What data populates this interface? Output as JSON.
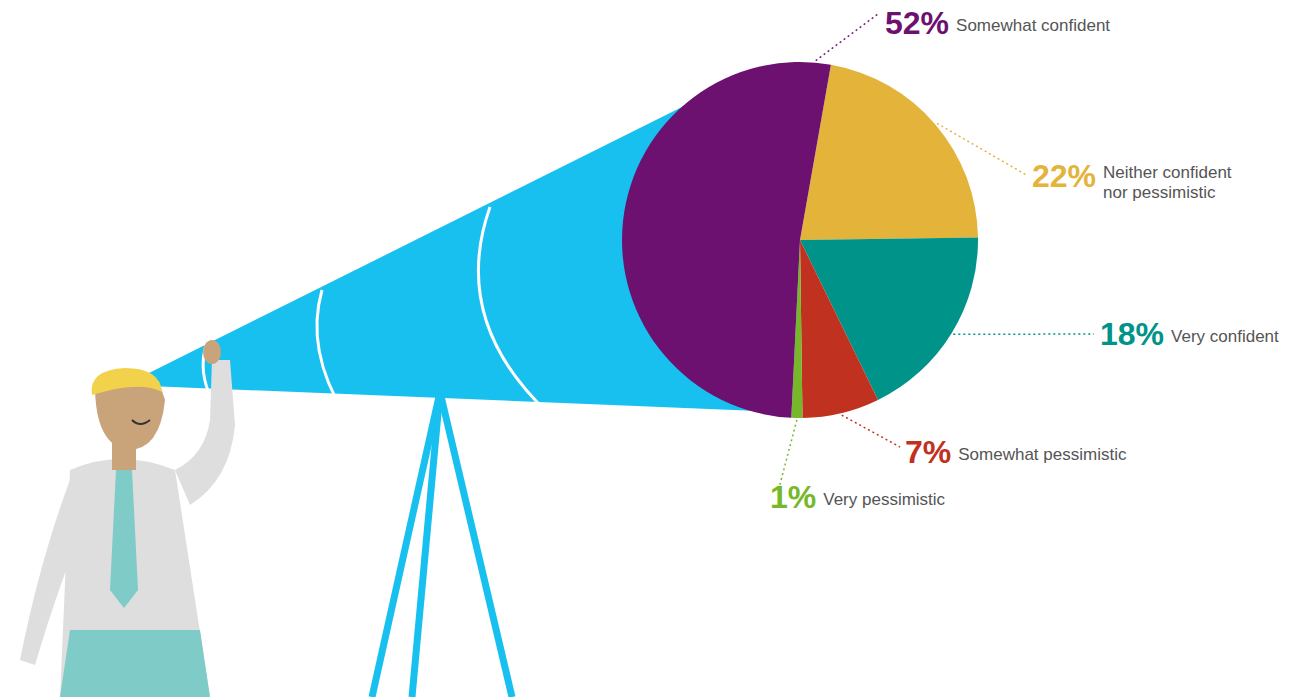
{
  "chart_data": {
    "type": "pie",
    "categories": [
      "Neither confident nor pessimistic",
      "Very confident",
      "Somewhat pessimistic",
      "Very pessimistic",
      "Somewhat confident"
    ],
    "values": [
      22,
      18,
      7,
      1,
      52
    ],
    "value_labels": [
      "22%",
      "18%",
      "7%",
      "1%",
      "52%"
    ],
    "colors": [
      "#e3b33a",
      "#00938a",
      "#c0311f",
      "#76b82a",
      "#6d1170"
    ],
    "data_labels": true
  }
}
